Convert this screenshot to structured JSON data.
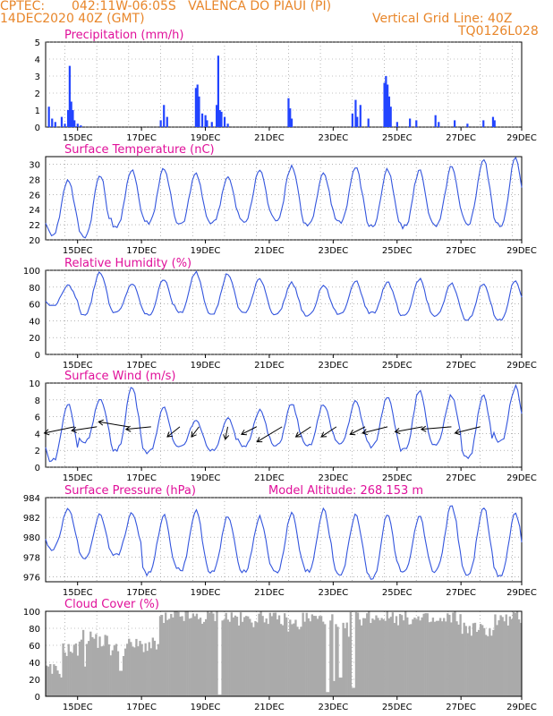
{
  "header": {
    "source": "CPTEC:",
    "location": "042:11W-06:05S   VALENCA DO PIAUI (PI)",
    "run": "14DEC2020 40Z (GMT)",
    "grid_note": "Vertical Grid Line: 40Z",
    "code": "TQ0126L028"
  },
  "colors": {
    "line": "#3355dd",
    "bar": "#2244ff",
    "cloud": "#aaaaaa",
    "title": "#e0109a",
    "header": "#e8862a"
  },
  "chart_data": [
    {
      "type": "bar",
      "title": "Precipitation (mm/h)",
      "x_ticks": [
        "15DEC",
        "17DEC",
        "19DEC",
        "21DEC",
        "23DEC",
        "25DEC",
        "27DEC",
        "29DEC"
      ],
      "ylim": [
        0,
        5
      ],
      "y_ticks": [
        0,
        1,
        2,
        3,
        4,
        5
      ],
      "x_unit": "days since 14DEC2020 00Z",
      "values": [
        [
          0.1,
          1.2
        ],
        [
          0.2,
          0.5
        ],
        [
          0.3,
          0.3
        ],
        [
          0.5,
          0.6
        ],
        [
          0.6,
          0.2
        ],
        [
          0.7,
          1.0
        ],
        [
          0.75,
          3.6
        ],
        [
          0.8,
          1.5
        ],
        [
          0.85,
          1.0
        ],
        [
          0.9,
          0.4
        ],
        [
          1.0,
          0.2
        ],
        [
          1.1,
          0.1
        ],
        [
          3.6,
          0.4
        ],
        [
          3.7,
          1.3
        ],
        [
          3.8,
          0.6
        ],
        [
          4.7,
          2.3
        ],
        [
          4.75,
          2.5
        ],
        [
          4.8,
          1.8
        ],
        [
          4.9,
          0.8
        ],
        [
          5.0,
          0.7
        ],
        [
          5.05,
          0.4
        ],
        [
          5.2,
          0.3
        ],
        [
          5.35,
          1.3
        ],
        [
          5.4,
          4.2
        ],
        [
          5.45,
          1.0
        ],
        [
          5.5,
          0.9
        ],
        [
          5.6,
          0.6
        ],
        [
          5.7,
          0.2
        ],
        [
          7.6,
          1.7
        ],
        [
          7.65,
          1.1
        ],
        [
          7.7,
          0.5
        ],
        [
          9.6,
          0.8
        ],
        [
          9.7,
          1.6
        ],
        [
          9.75,
          0.6
        ],
        [
          9.85,
          1.3
        ],
        [
          10.1,
          0.5
        ],
        [
          10.6,
          2.6
        ],
        [
          10.65,
          3.0
        ],
        [
          10.7,
          2.5
        ],
        [
          10.75,
          1.8
        ],
        [
          10.8,
          1.2
        ],
        [
          11.0,
          0.3
        ],
        [
          11.4,
          0.5
        ],
        [
          11.6,
          0.4
        ],
        [
          12.2,
          0.7
        ],
        [
          12.3,
          0.3
        ],
        [
          12.8,
          0.4
        ],
        [
          13.2,
          0.2
        ],
        [
          13.7,
          0.4
        ],
        [
          14.0,
          0.6
        ],
        [
          14.05,
          0.4
        ]
      ]
    },
    {
      "type": "line",
      "title": "Surface Temperature (nC)",
      "x_ticks": [
        "15DEC",
        "17DEC",
        "19DEC",
        "21DEC",
        "23DEC",
        "25DEC",
        "27DEC",
        "29DEC"
      ],
      "ylim": [
        20,
        31
      ],
      "y_ticks": [
        20,
        22,
        24,
        26,
        28,
        30
      ],
      "daily_min": [
        20.8,
        20.5,
        21.8,
        22.3,
        22.0,
        22.3,
        22.4,
        22.7,
        22.0,
        22.4,
        21.8,
        21.7,
        21.8,
        22.2,
        21.9
      ],
      "daily_max": [
        28.0,
        28.5,
        29.4,
        29.5,
        28.8,
        28.3,
        29.3,
        29.8,
        28.7,
        29.6,
        29.2,
        29.2,
        29.6,
        30.6,
        30.7
      ]
    },
    {
      "type": "line",
      "title": "Relative Humidity (%)",
      "x_ticks": [
        "15DEC",
        "17DEC",
        "19DEC",
        "21DEC",
        "23DEC",
        "25DEC",
        "27DEC",
        "29DEC"
      ],
      "ylim": [
        0,
        100
      ],
      "y_ticks": [
        0,
        20,
        40,
        60,
        80,
        100
      ],
      "daily_min": [
        58,
        48,
        50,
        47,
        50,
        49,
        50,
        48,
        46,
        48,
        49,
        45,
        46,
        42,
        40
      ],
      "daily_max": [
        82,
        98,
        84,
        90,
        98,
        96,
        90,
        85,
        82,
        88,
        86,
        90,
        84,
        85,
        88
      ]
    },
    {
      "type": "line",
      "title": "Surface Wind (m/s)",
      "x_ticks": [
        "15DEC",
        "17DEC",
        "19DEC",
        "21DEC",
        "23DEC",
        "25DEC",
        "27DEC",
        "29DEC"
      ],
      "ylim": [
        0,
        10
      ],
      "y_ticks": [
        0,
        2,
        4,
        6,
        8,
        10
      ],
      "daily_min": [
        0.8,
        3.0,
        2.0,
        1.8,
        2.5,
        2.0,
        2.5,
        2.5,
        2.5,
        2.8,
        2.5,
        2.0,
        2.6,
        1.2,
        3.0
      ],
      "daily_max": [
        7.5,
        8.0,
        9.5,
        7.0,
        5.5,
        5.8,
        6.8,
        7.5,
        7.5,
        7.8,
        8.5,
        9.0,
        8.5,
        8.5,
        9.5
      ],
      "wind_vectors": [
        [
          0.9,
          -1.2,
          0.25
        ],
        [
          1.6,
          -1.0,
          0.15
        ],
        [
          2.6,
          -1.2,
          -0.2
        ],
        [
          3.3,
          -1.0,
          0.1
        ],
        [
          4.2,
          -0.5,
          0.4
        ],
        [
          4.8,
          -0.3,
          0.4
        ],
        [
          5.7,
          -0.1,
          0.5
        ],
        [
          6.6,
          -0.6,
          0.3
        ],
        [
          7.4,
          -1.0,
          0.6
        ],
        [
          8.3,
          -0.6,
          0.4
        ],
        [
          9.1,
          -0.6,
          0.4
        ],
        [
          10.0,
          -0.6,
          0.3
        ],
        [
          10.7,
          -1.0,
          0.25
        ],
        [
          11.8,
          -1.1,
          0.2
        ],
        [
          12.7,
          -1.2,
          0.1
        ],
        [
          13.6,
          -1.0,
          0.25
        ]
      ]
    },
    {
      "type": "line",
      "title": "Surface Pressure (hPa)",
      "altitude_note": "Model Altitude: 268.153 m",
      "x_ticks": [
        "15DEC",
        "17DEC",
        "19DEC",
        "21DEC",
        "23DEC",
        "25DEC",
        "27DEC",
        "29DEC"
      ],
      "ylim": [
        975.5,
        984
      ],
      "y_ticks": [
        976,
        978,
        980,
        982,
        984
      ],
      "daily_min": [
        978.8,
        977.9,
        978.2,
        976.3,
        976.7,
        976.5,
        976.6,
        976.4,
        976.6,
        976.3,
        975.9,
        976.4,
        976.6,
        976.3,
        976.2
      ],
      "daily_max": [
        982.8,
        982.3,
        982.4,
        982.2,
        982.6,
        982.1,
        982.0,
        982.4,
        982.7,
        982.3,
        982.2,
        982.0,
        983.3,
        983.1,
        982.4
      ]
    },
    {
      "type": "area",
      "title": "Cloud Cover (%)",
      "x_ticks": [
        "15DEC",
        "17DEC",
        "19DEC",
        "21DEC",
        "23DEC",
        "25DEC",
        "27DEC",
        "29DEC"
      ],
      "ylim": [
        0,
        100
      ],
      "y_ticks": [
        0,
        20,
        40,
        60,
        80,
        100
      ],
      "segments": [
        [
          0.0,
          30
        ],
        [
          0.5,
          55
        ],
        [
          1.0,
          70
        ],
        [
          1.5,
          65
        ],
        [
          2.0,
          55
        ],
        [
          2.5,
          60
        ],
        [
          3.0,
          60
        ],
        [
          3.5,
          90
        ],
        [
          4.0,
          95
        ],
        [
          4.5,
          92
        ],
        [
          5.0,
          95
        ],
        [
          5.5,
          93
        ],
        [
          6.0,
          90
        ],
        [
          6.5,
          94
        ],
        [
          7.0,
          90
        ],
        [
          7.5,
          85
        ],
        [
          8.0,
          92
        ],
        [
          8.5,
          90
        ],
        [
          9.0,
          78
        ],
        [
          9.5,
          92
        ],
        [
          10.0,
          94
        ],
        [
          10.5,
          95
        ],
        [
          11.0,
          92
        ],
        [
          11.5,
          90
        ],
        [
          12.0,
          88
        ],
        [
          12.5,
          92
        ],
        [
          13.0,
          80
        ],
        [
          13.5,
          78
        ],
        [
          14.0,
          90
        ],
        [
          14.5,
          92
        ]
      ],
      "gaps": [
        [
          5.4,
          2
        ],
        [
          8.8,
          5
        ],
        [
          9.0,
          18
        ],
        [
          9.2,
          22
        ],
        [
          9.6,
          10
        ],
        [
          2.3,
          30
        ],
        [
          1.2,
          35
        ]
      ]
    }
  ]
}
